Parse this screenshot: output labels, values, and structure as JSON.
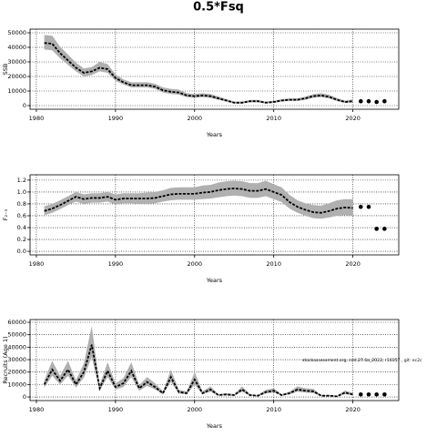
{
  "title": "0.5*Fsq",
  "chart_data": [
    {
      "type": "line",
      "ylabel": "SSB",
      "xlabel": "Years",
      "xlim": [
        1979.2,
        2025.8
      ],
      "xticks": [
        1980,
        1990,
        2000,
        2010,
        2020
      ],
      "ylim": [
        -2500,
        52500
      ],
      "yticks": [
        0,
        10000,
        20000,
        30000,
        40000,
        50000
      ],
      "grid": true,
      "x": [
        1981,
        1982,
        1983,
        1984,
        1985,
        1986,
        1987,
        1988,
        1989,
        1990,
        1991,
        1992,
        1993,
        1994,
        1995,
        1996,
        1997,
        1998,
        1999,
        2000,
        2001,
        2002,
        2003,
        2004,
        2005,
        2006,
        2007,
        2008,
        2009,
        2010,
        2011,
        2012,
        2013,
        2014,
        2015,
        2016,
        2017,
        2018,
        2019,
        2020
      ],
      "values": [
        43000,
        42500,
        36000,
        31000,
        26000,
        22500,
        23500,
        26000,
        25000,
        19000,
        16000,
        14000,
        14000,
        14000,
        13000,
        10500,
        9500,
        9000,
        7000,
        6500,
        7000,
        6500,
        5000,
        3500,
        2000,
        2000,
        3000,
        3000,
        2000,
        2500,
        3500,
        4000,
        4000,
        5000,
        6500,
        7000,
        6000,
        4000,
        2500,
        3000
      ],
      "lower": [
        38500,
        38000,
        32500,
        28000,
        23500,
        20000,
        21000,
        23500,
        22500,
        17000,
        14500,
        12500,
        12500,
        12500,
        11500,
        9000,
        8000,
        7500,
        5800,
        5300,
        5800,
        5300,
        4000,
        2700,
        1500,
        1500,
        2300,
        2300,
        1500,
        1900,
        2800,
        3200,
        3200,
        4000,
        5400,
        5800,
        4900,
        3100,
        1800,
        2100
      ],
      "upper": [
        48500,
        48000,
        40500,
        35000,
        29500,
        25500,
        26500,
        30000,
        28500,
        21500,
        18000,
        16000,
        16000,
        16000,
        15000,
        12500,
        11500,
        11000,
        8500,
        8000,
        8500,
        8000,
        6300,
        4500,
        2700,
        2700,
        3900,
        3900,
        2700,
        3300,
        4400,
        5000,
        5000,
        6200,
        7900,
        8500,
        7400,
        5200,
        3400,
        4300
      ],
      "point_x": [
        2021,
        2022,
        2023,
        2024
      ],
      "point_values": [
        3000,
        3000,
        2500,
        3000
      ],
      "color": "#000000",
      "band_color": "#b0b0b0"
    },
    {
      "type": "line",
      "ylabel": "F₂₋₅",
      "xlabel": "Years",
      "xlim": [
        1979.2,
        2025.8
      ],
      "xticks": [
        1980,
        1990,
        2000,
        2010,
        2020
      ],
      "ylim": [
        -0.06,
        1.29
      ],
      "yticks": [
        {
          "value": 0,
          "label": "0.0"
        },
        0.2,
        0.4,
        0.6,
        0.8,
        {
          "value": 1,
          "label": "1.0"
        },
        1.2
      ],
      "grid": true,
      "x": [
        1981,
        1982,
        1983,
        1984,
        1985,
        1986,
        1987,
        1988,
        1989,
        1990,
        1991,
        1992,
        1993,
        1994,
        1995,
        1996,
        1997,
        1998,
        1999,
        2000,
        2001,
        2002,
        2003,
        2004,
        2005,
        2006,
        2007,
        2008,
        2009,
        2010,
        2011,
        2012,
        2013,
        2014,
        2015,
        2016,
        2017,
        2018,
        2019,
        2020
      ],
      "values": [
        0.68,
        0.72,
        0.78,
        0.85,
        0.92,
        0.88,
        0.9,
        0.9,
        0.92,
        0.87,
        0.89,
        0.89,
        0.89,
        0.89,
        0.9,
        0.93,
        0.96,
        0.97,
        0.97,
        0.97,
        0.99,
        1.0,
        1.03,
        1.05,
        1.06,
        1.05,
        1.02,
        1.02,
        1.05,
        1.0,
        0.95,
        0.83,
        0.75,
        0.7,
        0.66,
        0.65,
        0.68,
        0.72,
        0.74,
        0.73
      ],
      "lower": [
        0.61,
        0.65,
        0.71,
        0.78,
        0.84,
        0.8,
        0.82,
        0.82,
        0.84,
        0.79,
        0.81,
        0.81,
        0.8,
        0.8,
        0.81,
        0.84,
        0.86,
        0.87,
        0.87,
        0.87,
        0.88,
        0.89,
        0.91,
        0.93,
        0.94,
        0.93,
        0.9,
        0.9,
        0.93,
        0.88,
        0.83,
        0.72,
        0.65,
        0.6,
        0.56,
        0.55,
        0.57,
        0.6,
        0.61,
        0.6
      ],
      "upper": [
        0.76,
        0.8,
        0.86,
        0.93,
        1.0,
        0.96,
        0.98,
        0.98,
        1.0,
        0.96,
        0.98,
        0.98,
        0.98,
        0.99,
        1.0,
        1.03,
        1.07,
        1.08,
        1.08,
        1.08,
        1.11,
        1.12,
        1.16,
        1.18,
        1.19,
        1.18,
        1.15,
        1.15,
        1.19,
        1.13,
        1.08,
        0.95,
        0.86,
        0.81,
        0.78,
        0.77,
        0.81,
        0.86,
        0.88,
        0.88
      ],
      "point_x": [
        2021,
        2022,
        2023,
        2024
      ],
      "point_values": [
        0.75,
        0.75,
        0.38,
        0.38
      ],
      "color": "#000000",
      "band_color": "#b0b0b0"
    },
    {
      "type": "line",
      "ylabel": "Recruits (Age 1)",
      "xlabel": "Years",
      "annotation": "stockassessment.org, cod.27.6a_2022, r16157 , git: ec2c",
      "xlim": [
        1979.2,
        2025.8
      ],
      "xticks": [
        1980,
        1990,
        2000,
        2010,
        2020
      ],
      "ylim": [
        -2900,
        62200
      ],
      "yticks": [
        0,
        10000,
        20000,
        30000,
        40000,
        50000,
        60000
      ],
      "grid": true,
      "x": [
        1981,
        1982,
        1983,
        1984,
        1985,
        1986,
        1987,
        1988,
        1989,
        1990,
        1991,
        1992,
        1993,
        1994,
        1995,
        1996,
        1997,
        1998,
        1999,
        2000,
        2001,
        2002,
        2003,
        2004,
        2005,
        2006,
        2007,
        2008,
        2009,
        2010,
        2011,
        2012,
        2013,
        2014,
        2015,
        2016,
        2017,
        2018,
        2019,
        2020
      ],
      "values": [
        10000,
        22000,
        13000,
        22000,
        10000,
        20000,
        42000,
        7000,
        21000,
        8000,
        11000,
        21000,
        7000,
        12000,
        8000,
        3000,
        16000,
        4000,
        3000,
        14000,
        3000,
        6000,
        1500,
        2000,
        1500,
        6000,
        1500,
        1000,
        4000,
        5000,
        1500,
        3000,
        6000,
        5000,
        4500,
        1000,
        1000,
        500,
        3500,
        2000
      ],
      "lower": [
        7500,
        17000,
        10000,
        17000,
        7500,
        15500,
        32000,
        5000,
        16000,
        6000,
        8000,
        16000,
        5000,
        9000,
        6000,
        2000,
        12000,
        2800,
        2000,
        10000,
        2000,
        4200,
        1000,
        1300,
        1000,
        4200,
        1000,
        600,
        2800,
        3500,
        1000,
        2100,
        4200,
        3500,
        3100,
        600,
        600,
        300,
        2300,
        1200
      ],
      "upper": [
        13500,
        29000,
        17000,
        29000,
        13500,
        27000,
        57000,
        9500,
        28000,
        11000,
        15000,
        28000,
        9500,
        16000,
        11000,
        4500,
        22000,
        5800,
        4500,
        20000,
        4500,
        8500,
        2200,
        3000,
        2200,
        8500,
        2200,
        1600,
        5800,
        7000,
        2200,
        4300,
        8500,
        7000,
        6500,
        1600,
        1600,
        900,
        5200,
        3200
      ],
      "point_x": [
        2021,
        2022,
        2023,
        2024
      ],
      "point_values": [
        2000,
        2000,
        2000,
        2000
      ],
      "color": "#000000",
      "band_color": "#b0b0b0"
    }
  ]
}
